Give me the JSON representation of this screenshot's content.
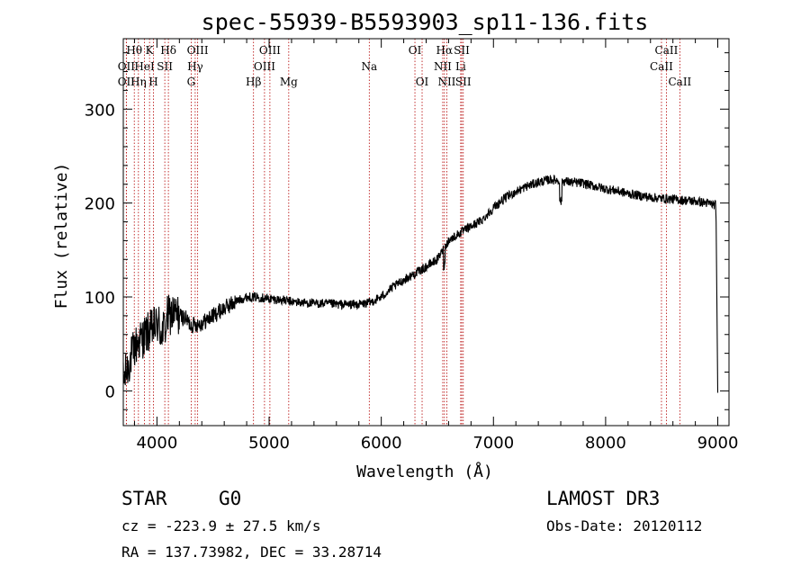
{
  "chart_data": {
    "type": "line",
    "title": "spec-55939-B5593903_sp11-136.fits",
    "xlabel": "Wavelength (Å)",
    "ylabel": "Flux (relative)",
    "xlim": [
      3700,
      9100
    ],
    "ylim": [
      -37,
      375
    ],
    "xticks": [
      4000,
      5000,
      6000,
      7000,
      8000,
      9000
    ],
    "yticks": [
      0,
      100,
      200,
      300
    ],
    "series": [
      {
        "name": "spectrum",
        "x": [
          3700,
          3740,
          3780,
          3820,
          3860,
          3900,
          3950,
          4000,
          4050,
          4100,
          4150,
          4200,
          4250,
          4300,
          4400,
          4500,
          4600,
          4700,
          4800,
          4900,
          5000,
          5100,
          5200,
          5300,
          5400,
          5500,
          5600,
          5700,
          5800,
          5900,
          6000,
          6100,
          6200,
          6300,
          6400,
          6500,
          6550,
          6600,
          6700,
          6800,
          6900,
          7000,
          7100,
          7200,
          7300,
          7400,
          7500,
          7600,
          7700,
          7800,
          7900,
          8000,
          8100,
          8200,
          8300,
          8400,
          8500,
          8600,
          8700,
          8800,
          8900,
          8980,
          9000
        ],
        "y": [
          10,
          25,
          40,
          50,
          55,
          60,
          65,
          70,
          75,
          80,
          82,
          80,
          78,
          70,
          72,
          80,
          88,
          95,
          100,
          100,
          98,
          97,
          95,
          94,
          93,
          93,
          92,
          92,
          92,
          94,
          100,
          110,
          118,
          125,
          132,
          140,
          150,
          160,
          168,
          175,
          182,
          195,
          205,
          212,
          218,
          222,
          225,
          224,
          222,
          221,
          218,
          215,
          213,
          210,
          208,
          206,
          205,
          204,
          203,
          202,
          200,
          198,
          -2
        ]
      }
    ],
    "line_markers": [
      {
        "label": "Hθ",
        "wavelength": 3798,
        "row": 0
      },
      {
        "label": "OII",
        "wavelength": 3727,
        "row": 1
      },
      {
        "label": "OII",
        "wavelength": 3727,
        "row": 2
      },
      {
        "label": "HeI",
        "wavelength": 3889,
        "row": 1
      },
      {
        "label": "Hη",
        "wavelength": 3835,
        "row": 2
      },
      {
        "label": "K",
        "wavelength": 3934,
        "row": 0
      },
      {
        "label": "H",
        "wavelength": 3969,
        "row": 2
      },
      {
        "label": "Hδ",
        "wavelength": 4102,
        "row": 0
      },
      {
        "label": "SII",
        "wavelength": 4070,
        "row": 1
      },
      {
        "label": "OIII",
        "wavelength": 4363,
        "row": 0
      },
      {
        "label": "Hγ",
        "wavelength": 4341,
        "row": 1
      },
      {
        "label": "G",
        "wavelength": 4305,
        "row": 2
      },
      {
        "label": "Hβ",
        "wavelength": 4861,
        "row": 2
      },
      {
        "label": "OIII",
        "wavelength": 4959,
        "row": 1
      },
      {
        "label": "OIII",
        "wavelength": 5007,
        "row": 0
      },
      {
        "label": "Mg",
        "wavelength": 5175,
        "row": 2
      },
      {
        "label": "Na",
        "wavelength": 5893,
        "row": 1
      },
      {
        "label": "OI",
        "wavelength": 6300,
        "row": 0
      },
      {
        "label": "OI",
        "wavelength": 6364,
        "row": 2
      },
      {
        "label": "Hα",
        "wavelength": 6563,
        "row": 0
      },
      {
        "label": "NII",
        "wavelength": 6548,
        "row": 1
      },
      {
        "label": "NII",
        "wavelength": 6584,
        "row": 2
      },
      {
        "label": "SII",
        "wavelength": 6717,
        "row": 0
      },
      {
        "label": "Li",
        "wavelength": 6708,
        "row": 1
      },
      {
        "label": "SII",
        "wavelength": 6731,
        "row": 2
      },
      {
        "label": "CaII",
        "wavelength": 8542,
        "row": 0
      },
      {
        "label": "CaII",
        "wavelength": 8498,
        "row": 1
      },
      {
        "label": "CaII",
        "wavelength": 8662,
        "row": 2
      }
    ]
  },
  "info": {
    "class": "STAR",
    "subclass": "G0",
    "survey": "LAMOST DR3",
    "cz": "cz = -223.9 ± 27.5 km/s",
    "obs_date": "Obs-Date: 20120112",
    "radec": "RA = 137.73982, DEC =  33.28714"
  }
}
